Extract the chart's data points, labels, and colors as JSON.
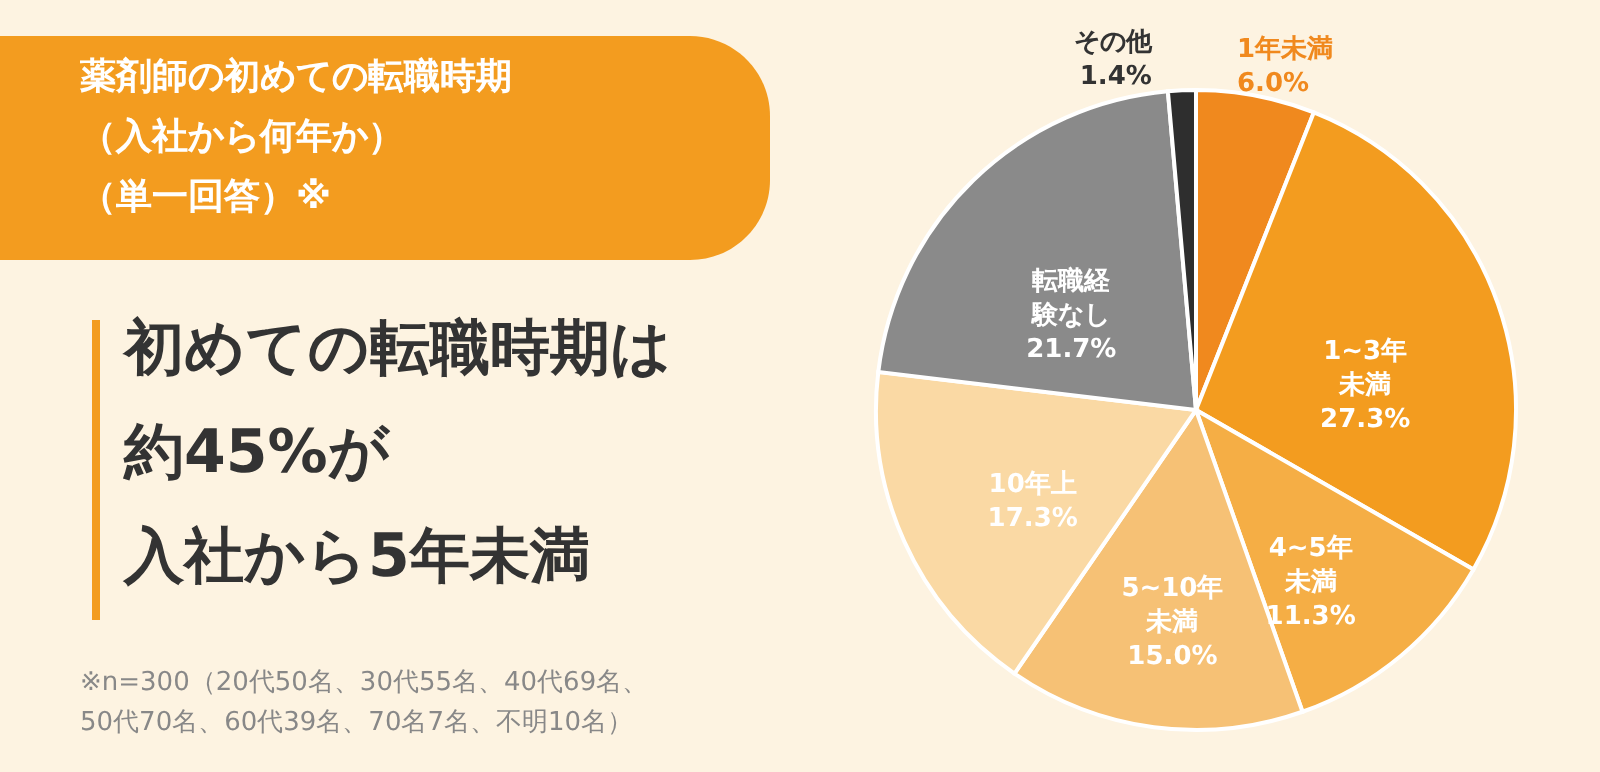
{
  "chart_data": {
    "type": "pie",
    "title": "薬剤師の初めての転職時期（入社から何年か）（単一回答）※",
    "subtitle": "初めての転職時期は",
    "annotations": [
      "約45%が",
      "入社から5年未満",
      "※n=300（20代50名、30代55名、40代69名、50代70名、60代39名、70名7名、不明10名）"
    ],
    "categories": [
      "1年未満",
      "1~3年未満",
      "4~5年未満",
      "5~10年未満",
      "10年上",
      "転職経験なし",
      "その他"
    ],
    "values": [
      6.0,
      27.3,
      11.3,
      15.0,
      17.3,
      21.7,
      1.4
    ],
    "colors": [
      "#f0891e",
      "#f39c1f",
      "#f5ae45",
      "#f6c175",
      "#fad9a4",
      "#8a8a8a",
      "#2e2e2e"
    ],
    "value_labels": [
      "6.0%",
      "27.3%",
      "11.3%",
      "15.0%",
      "17.3%",
      "21.7%",
      "1.4%"
    ]
  }
}
